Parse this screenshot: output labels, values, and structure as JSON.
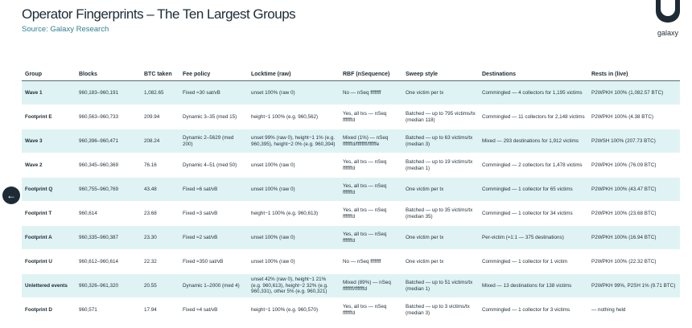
{
  "header": {
    "title": "Operator Fingerprints – The Ten Largest Groups",
    "subtitle": "Source: Galaxy Research",
    "logo_text": "galaxy"
  },
  "nav": {
    "back_icon": "arrow-left-icon",
    "back_glyph": "←"
  },
  "table": {
    "headers": [
      "Group",
      "Blocks",
      "BTC taken",
      "Fee policy",
      "Locktime (raw)",
      "RBF (nSequence)",
      "Sweep style",
      "Destinations",
      "Rests in (live)"
    ],
    "rows": [
      [
        "Wave 1",
        "960,183–960,191",
        "1,082.65",
        "Fixed ≈30 sat/vB",
        "unset 100% (raw 0)",
        "No — nSeq ffffffff",
        "One victim per tx",
        "Commingled — 4 collectors for 1,195 victims",
        "P2WPKH 100% (1,082.57 BTC)"
      ],
      [
        "Footprint E",
        "960,563–960,733",
        "209.94",
        "Dynamic 3–35 (med 15)",
        "height−1 100% (e.g. 960,562)",
        "Yes, all txs — nSeq fffffffd",
        "Batched — up to 795 victims/tx (median 118)",
        "Commingled — 11 collectors for 2,148 victims",
        "P2WPKH 100% (4.38 BTC)"
      ],
      [
        "Wave 3",
        "960,396–960,471",
        "208.24",
        "Dynamic 2–5629 (med 200)",
        "unset 99% (raw 0), height−1 1% (e.g. 960,395), height−2 0% (e.g. 960,394)",
        "Mixed (1%) — nSeq fffffffd/ffffffff/ffffffe",
        "Batched — up to 63 victims/tx (median 3)",
        "Mixed — 293 destinations for 1,912 victims",
        "P2WSH 100% (207.73 BTC)"
      ],
      [
        "Wave 2",
        "960,345–960,369",
        "76.16",
        "Dynamic 4–51 (med 50)",
        "unset 100% (raw 0)",
        "Yes, all txs — nSeq fffffffd",
        "Batched — up to 19 victims/tx (median 1)",
        "Commingled — 2 collectors for 1,478 victims",
        "P2WPKH 100% (76.09 BTC)"
      ],
      [
        "Footprint Q",
        "960,755–960,769",
        "43.48",
        "Fixed ≈6 sat/vB",
        "unset 100% (raw 0)",
        "Yes, all txs — nSeq fffffffd",
        "One victim per tx",
        "Commingled — 1 collector for 65 victims",
        "P2WPKH 100% (43.47 BTC)"
      ],
      [
        "Footprint T",
        "960,614",
        "23.68",
        "Fixed ≈3 sat/vB",
        "height−1 100% (e.g. 960,613)",
        "Yes, all txs — nSeq fffffffd",
        "Batched — up to 35 victims/tx (median 35)",
        "Commingled — 1 collector for 34 victims",
        "P2WPKH 100% (23.68 BTC)"
      ],
      [
        "Footprint A",
        "960,335–960,387",
        "23.30",
        "Fixed ≈2 sat/vB",
        "unset 100% (raw 0)",
        "Yes, all txs — nSeq fffffffd",
        "One victim per tx",
        "Per-victim (≈1:1 — 375 destinations)",
        "P2WPKH 100% (16.94 BTC)"
      ],
      [
        "Footprint U",
        "960,612–960,614",
        "22.32",
        "Fixed ≈350 sat/vB",
        "unset 100% (raw 0)",
        "No — nSeq ffffffff",
        "One victim per tx",
        "Commingled — 1 collector for 1 victim",
        "P2WPKH 100% (22.32 BTC)"
      ],
      [
        "Unlettered events",
        "960,326–961,320",
        "20.55",
        "Dynamic 1–2000 (med 4)",
        "unset 42% (raw 0), height−1 21% (e.g. 960,613), height−2 32% (e.g. 960,331), other 5% (e.g. 960,321)",
        "Mixed (89%) — nSeq ffffffff/fffffffd",
        "Batched — up to 51 victims/tx (median 1)",
        "Mixed — 13 destinations for 138 victims",
        "P2WPKH 99%, P2SH 1% (9.71 BTC)"
      ],
      [
        "Footprint D",
        "960,571",
        "17.94",
        "Fixed ≈4 sat/vB",
        "height−1 100% (e.g. 960,570)",
        "Yes, all txs — nSeq fffffffd",
        "Batched — up to 3 victims/tx (median 3)",
        "Commingled — 1 collector for 3 victims",
        "— nothing held"
      ]
    ]
  }
}
